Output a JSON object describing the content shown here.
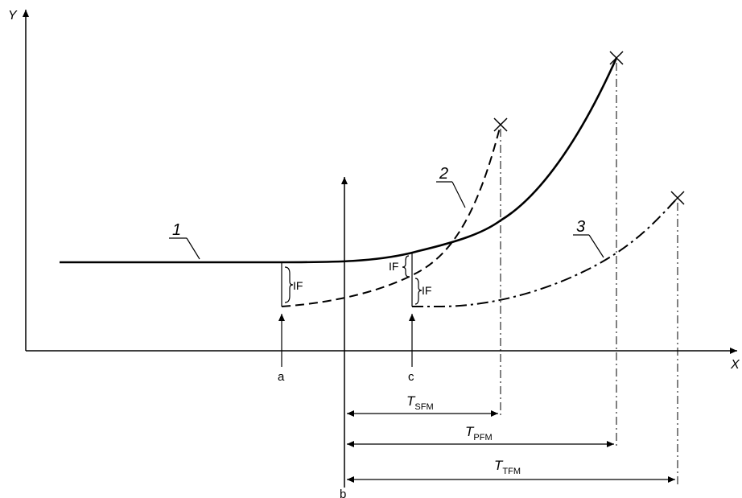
{
  "diagram": {
    "axes": {
      "x_label": "X",
      "y_label": "Y"
    },
    "event_labels": {
      "a": "a",
      "c": "c",
      "b": "b"
    },
    "curve_labels": [
      "1",
      "2",
      "3"
    ],
    "if_label": "IF",
    "intervals": {
      "sfm": {
        "main": "T",
        "sub": "SFM"
      },
      "pfm": {
        "main": "T",
        "sub": "PFM"
      },
      "tfm": {
        "main": "T",
        "sub": "TFM"
      }
    }
  }
}
